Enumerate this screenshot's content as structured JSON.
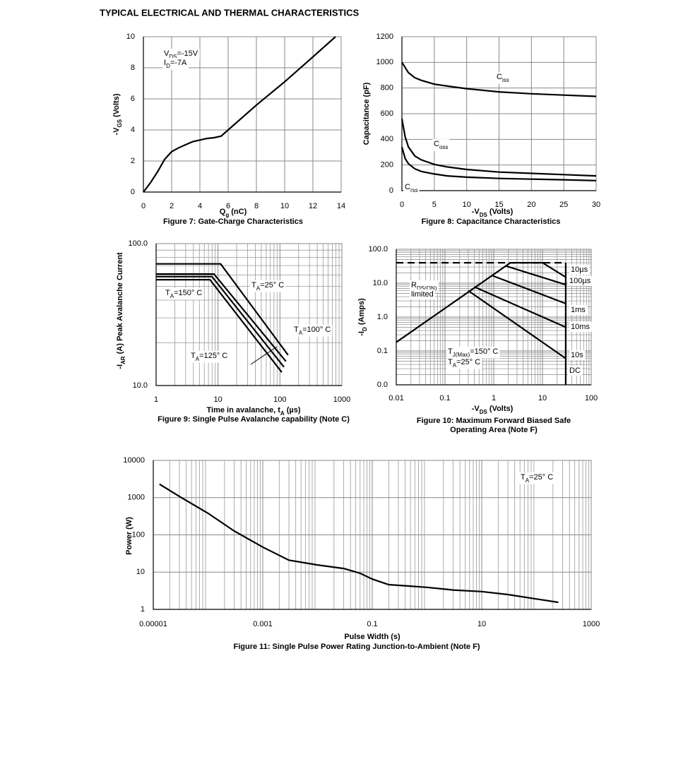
{
  "page_title": "TYPICAL ELECTRICAL AND THERMAL CHARACTERISTICS",
  "chart_data": [
    {
      "type": "line",
      "caption": [
        "Figure 7: Gate-Charge Characteristics"
      ],
      "x_label": [
        "Q",
        "g",
        " (nC)"
      ],
      "y_label": [
        "-V",
        "GS",
        " (Volts)"
      ],
      "xlim": [
        0,
        14
      ],
      "xticks": [
        0,
        2,
        4,
        6,
        8,
        10,
        12,
        14
      ],
      "ylim": [
        0,
        10
      ],
      "yticks": [
        0,
        2,
        4,
        6,
        8,
        10
      ],
      "grid": true,
      "annotations": [
        [
          "V",
          "DS",
          "=-15V"
        ],
        [
          "I",
          "D",
          "=-7A"
        ]
      ],
      "series": [
        {
          "color": "#000000",
          "x": [
            0,
            0.5,
            1,
            1.5,
            2,
            2.5,
            3,
            3.5,
            4,
            4.5,
            5,
            5.5,
            6,
            8,
            10,
            12,
            13.6
          ],
          "values": [
            0,
            0.6,
            1.3,
            2.1,
            2.6,
            2.85,
            3.05,
            3.25,
            3.35,
            3.45,
            3.5,
            3.6,
            4.0,
            5.6,
            7.1,
            8.7,
            10
          ]
        }
      ]
    },
    {
      "type": "line",
      "caption": [
        "Figure 8: Capacitance Characteristics"
      ],
      "x_label": [
        "-V",
        "DS",
        " (Volts)"
      ],
      "y_label": [
        "Capacitance (pF)"
      ],
      "xlim": [
        0,
        30
      ],
      "xticks": [
        0,
        5,
        10,
        15,
        20,
        25,
        30
      ],
      "ylim": [
        0,
        1200
      ],
      "yticks": [
        0,
        200,
        400,
        600,
        800,
        1000,
        1200
      ],
      "grid": true,
      "annotations": [
        [
          "C",
          "iss"
        ],
        [
          "C",
          "oss"
        ],
        [
          "C",
          "rss"
        ]
      ],
      "series": [
        {
          "color": "#000000",
          "x": [
            0,
            1,
            2,
            3,
            5,
            7,
            10,
            15,
            20,
            25,
            30
          ],
          "values": [
            1000,
            920,
            880,
            860,
            830,
            815,
            795,
            770,
            755,
            745,
            735
          ]
        },
        {
          "color": "#000000",
          "x": [
            0,
            0.5,
            1,
            2,
            3,
            5,
            7,
            10,
            15,
            20,
            25,
            30
          ],
          "values": [
            560,
            420,
            340,
            270,
            240,
            205,
            185,
            165,
            145,
            135,
            125,
            115
          ]
        },
        {
          "color": "#000000",
          "x": [
            0,
            0.5,
            1,
            2,
            3,
            5,
            7,
            10,
            15,
            20,
            25,
            30
          ],
          "values": [
            340,
            250,
            210,
            170,
            150,
            130,
            115,
            105,
            95,
            90,
            85,
            78
          ]
        }
      ]
    },
    {
      "type": "line",
      "caption": [
        "Figure 9: Single Pulse Avalanche capability (Note C)"
      ],
      "x_label": [
        "Time in avalanche, t",
        "A",
        " (µs)"
      ],
      "y_label": [
        "-I",
        "AR",
        " (A) Peak Avalanche Current"
      ],
      "log_x": true,
      "log_y": true,
      "xlim": [
        1,
        1000
      ],
      "xticks": [
        1,
        10,
        100,
        1000
      ],
      "ylim": [
        10,
        100
      ],
      "yticks": [
        {
          "value": 10,
          "label": "10.0"
        },
        {
          "value": 100,
          "label": "100.0"
        }
      ],
      "grid": true,
      "minor_grid": "xy",
      "annotations": [
        [
          "T",
          "A",
          "=25° C"
        ],
        [
          "T",
          "A",
          "=150° C"
        ],
        [
          "T",
          "A",
          "=100° C"
        ],
        [
          "T",
          "A",
          "=125° C"
        ]
      ],
      "series": [
        {
          "color": "#000000",
          "x": [
            1,
            11,
            135
          ],
          "values": [
            72,
            72,
            16.4
          ]
        },
        {
          "color": "#000000",
          "x": [
            1,
            8.6,
            125
          ],
          "values": [
            61,
            61,
            14.8
          ]
        },
        {
          "color": "#000000",
          "x": [
            1,
            8,
            116
          ],
          "values": [
            58.5,
            58.5,
            13.5
          ]
        },
        {
          "color": "#000000",
          "x": [
            1,
            7.4,
            107
          ],
          "values": [
            55.7,
            55.7,
            12.4
          ]
        }
      ]
    },
    {
      "type": "line",
      "caption": [
        "Figure 10: Maximum Forward Biased Safe",
        "Operating Area (Note F)"
      ],
      "x_label": [
        "-V",
        "DS",
        " (Volts)"
      ],
      "y_label": [
        "-I",
        "D",
        " (Amps)"
      ],
      "log_x": true,
      "log_y": true,
      "xlim": [
        0.01,
        100
      ],
      "xticks": [
        0.01,
        0.1,
        1,
        10,
        100
      ],
      "ylim": [
        0.01,
        100
      ],
      "yticks": [
        {
          "value": 0.01,
          "label": "0.0"
        },
        {
          "value": 0.1,
          "label": "0.1"
        },
        {
          "value": 1,
          "label": "1.0"
        },
        {
          "value": 10,
          "label": "10.0"
        },
        {
          "value": 100,
          "label": "100.0"
        }
      ],
      "grid": true,
      "minor_grid": "xy",
      "annotations": [
        [
          "R",
          "DS(ON)"
        ],
        [
          "limited"
        ],
        [
          "T",
          "J(Max)",
          "=150° C"
        ],
        [
          "T",
          "A",
          "=25° C"
        ],
        [
          "10µs"
        ],
        [
          "100µs"
        ],
        [
          "1ms"
        ],
        [
          "10ms"
        ],
        [
          "10s"
        ],
        [
          "DC"
        ]
      ],
      "series": [
        {
          "color": "#000000",
          "x": [
            0.01,
            2.2
          ],
          "values": [
            0.18,
            40
          ]
        },
        {
          "color": "#000000",
          "dash": true,
          "x": [
            0.01,
            30
          ],
          "values": [
            40,
            40
          ]
        },
        {
          "color": "#000000",
          "x": [
            2.2,
            10,
            30
          ],
          "values": [
            40,
            40,
            15
          ]
        },
        {
          "color": "#000000",
          "x": [
            1.8,
            30
          ],
          "values": [
            32,
            9
          ]
        },
        {
          "color": "#000000",
          "x": [
            0.9,
            30
          ],
          "values": [
            17,
            2.5
          ]
        },
        {
          "color": "#000000",
          "x": [
            0.4,
            30
          ],
          "values": [
            7.8,
            0.5
          ]
        },
        {
          "color": "#000000",
          "x": [
            0.3,
            30
          ],
          "values": [
            6,
            0.06
          ]
        },
        {
          "color": "#000000",
          "x": [
            30,
            30
          ],
          "values": [
            40,
            0.01
          ]
        }
      ]
    },
    {
      "type": "line",
      "caption": [
        "Figure 11: Single Pulse Power Rating Junction-to-Ambient (Note F)"
      ],
      "x_label": [
        "Pulse Width (s)"
      ],
      "y_label": [
        "Power (W)"
      ],
      "log_x": true,
      "log_y": true,
      "xlim": [
        1e-05,
        1000
      ],
      "xticks": [
        1e-05,
        0.001,
        0.1,
        10,
        1000
      ],
      "ylim": [
        1,
        10000
      ],
      "yticks": [
        1,
        10,
        100,
        1000,
        10000
      ],
      "grid": true,
      "minor_grid": "x",
      "annotations": [
        [
          "T",
          "A",
          "=25° C"
        ]
      ],
      "series": [
        {
          "color": "#000000",
          "x": [
            1.3e-05,
            3e-05,
            0.0001,
            0.0003,
            0.001,
            0.003,
            0.01,
            0.03,
            0.06,
            0.1,
            0.2,
            0.5,
            1,
            3,
            10,
            30,
            100,
            250
          ],
          "values": [
            2300,
            1075,
            380,
            127,
            47,
            21,
            15.6,
            12.5,
            9.3,
            6.5,
            4.6,
            4.2,
            3.9,
            3.3,
            3,
            2.5,
            1.9,
            1.55
          ]
        }
      ]
    }
  ]
}
